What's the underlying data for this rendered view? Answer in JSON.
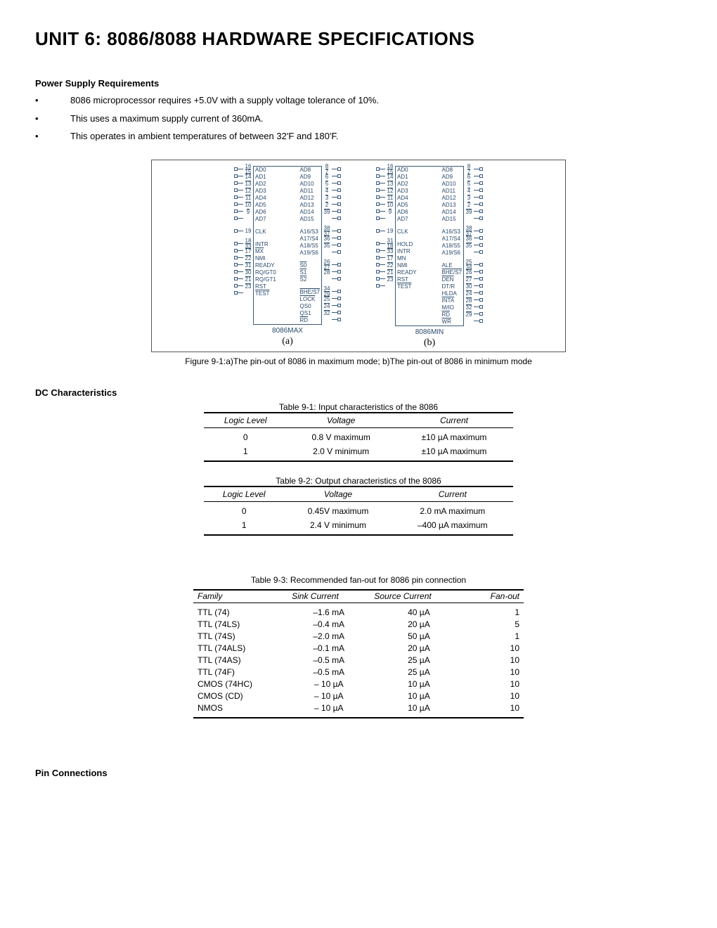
{
  "title": "UNIT 6: 8086/8088 HARDWARE SPECIFICATIONS",
  "psr": {
    "heading": "Power Supply Requirements",
    "bullets": [
      "8086 microprocessor requires +5.0V with a supply voltage tolerance of 10%.",
      "This uses a maximum supply current of 360mA.",
      "This operates in ambient temperatures of between 32'F and 180'F."
    ]
  },
  "figure": {
    "caption": "Figure 9-1:a)The pin-out of 8086 in maximum mode; b)The pin-out of 8086 in minimum mode",
    "name_a": "8086MAX",
    "name_b": "8086MIN",
    "label_a": "(a)",
    "label_b": "(b)",
    "chip_a": {
      "left": [
        {
          "pin": "16",
          "bar": "15",
          "label": "AD0"
        },
        {
          "pin": "",
          "bar": "14",
          "label": "AD1"
        },
        {
          "pin": "",
          "bar": "13",
          "label": "AD2"
        },
        {
          "pin": "",
          "bar": "12",
          "label": "AD3"
        },
        {
          "pin": "",
          "bar": "11",
          "label": "AD4"
        },
        {
          "pin": "",
          "bar": "10",
          "label": "AD5"
        },
        {
          "pin": "",
          "bar": "9",
          "label": "AD6"
        },
        {
          "pin": "",
          "bar": "",
          "label": "AD7"
        },
        {
          "gap": true
        },
        {
          "pin": "19",
          "bar": "",
          "label": "CLK",
          "wedge": true
        },
        {
          "gap": true
        },
        {
          "pin": "18",
          "bar": "33",
          "label": "INTR"
        },
        {
          "pin": "",
          "bar": "17",
          "label": "MX",
          "over": true
        },
        {
          "pin": "",
          "bar": "22",
          "label": "NMI"
        },
        {
          "pin": "",
          "bar": "31",
          "label": "READY"
        },
        {
          "pin": "",
          "bar": "30",
          "label": "RQ/GT0"
        },
        {
          "pin": "",
          "bar": "21",
          "label": "RQ/GT1"
        },
        {
          "pin": "",
          "bar": "23",
          "label": "RST"
        },
        {
          "pin": "",
          "bar": "",
          "label": "TEST",
          "over": true
        }
      ],
      "right": [
        {
          "pin": "8",
          "bar": "7",
          "label": "AD8"
        },
        {
          "pin": "",
          "bar": "6",
          "label": "AD9"
        },
        {
          "pin": "",
          "bar": "5",
          "label": "AD10"
        },
        {
          "pin": "",
          "bar": "4",
          "label": "AD11"
        },
        {
          "pin": "",
          "bar": "3",
          "label": "AD12"
        },
        {
          "pin": "",
          "bar": "2",
          "label": "AD13"
        },
        {
          "pin": "",
          "bar": "39",
          "label": "AD14"
        },
        {
          "pin": "",
          "bar": "",
          "label": "AD15"
        },
        {
          "gap": true
        },
        {
          "pin": "38",
          "bar": "37",
          "label": "A16/S3"
        },
        {
          "pin": "",
          "bar": "36",
          "label": "A17/S4"
        },
        {
          "pin": "",
          "bar": "35",
          "label": "A18/S5"
        },
        {
          "pin": "",
          "bar": "",
          "label": "A19/S6"
        },
        {
          "gap": true
        },
        {
          "pin": "26",
          "bar": "27",
          "label": "S0",
          "over": true
        },
        {
          "pin": "",
          "bar": "28",
          "label": "S1",
          "over": true
        },
        {
          "pin": "",
          "bar": "",
          "label": "S2",
          "over": true
        },
        {
          "gap": true
        },
        {
          "pin": "34",
          "bar": "29",
          "label": "BHE/S7",
          "over": true
        },
        {
          "pin": "",
          "bar": "25",
          "label": "LOCK",
          "over": true
        },
        {
          "pin": "",
          "bar": "24",
          "label": "QS0"
        },
        {
          "pin": "",
          "bar": "32",
          "label": "QS1"
        },
        {
          "pin": "",
          "bar": "",
          "label": "RD",
          "over": true
        }
      ]
    },
    "chip_b": {
      "left": [
        {
          "pin": "16",
          "bar": "15",
          "label": "AD0"
        },
        {
          "pin": "",
          "bar": "14",
          "label": "AD1"
        },
        {
          "pin": "",
          "bar": "13",
          "label": "AD2"
        },
        {
          "pin": "",
          "bar": "12",
          "label": "AD3"
        },
        {
          "pin": "",
          "bar": "11",
          "label": "AD4"
        },
        {
          "pin": "",
          "bar": "10",
          "label": "AD5"
        },
        {
          "pin": "",
          "bar": "9",
          "label": "AD6"
        },
        {
          "pin": "",
          "bar": "",
          "label": "AD7"
        },
        {
          "gap": true
        },
        {
          "pin": "19",
          "bar": "",
          "label": "CLK",
          "wedge": true
        },
        {
          "gap": true
        },
        {
          "pin": "31",
          "bar": "18",
          "label": "HOLD"
        },
        {
          "pin": "",
          "bar": "33",
          "label": "INTR"
        },
        {
          "pin": "",
          "bar": "17",
          "label": "MN"
        },
        {
          "pin": "",
          "bar": "22",
          "label": "NMI"
        },
        {
          "pin": "",
          "bar": "21",
          "label": "READY"
        },
        {
          "pin": "",
          "bar": "23",
          "label": "RST"
        },
        {
          "pin": "",
          "bar": "",
          "label": "TEST",
          "over": true
        }
      ],
      "right": [
        {
          "pin": "8",
          "bar": "7",
          "label": "AD8"
        },
        {
          "pin": "",
          "bar": "6",
          "label": "AD9"
        },
        {
          "pin": "",
          "bar": "5",
          "label": "AD10"
        },
        {
          "pin": "",
          "bar": "4",
          "label": "AD11"
        },
        {
          "pin": "",
          "bar": "3",
          "label": "AD12"
        },
        {
          "pin": "",
          "bar": "2",
          "label": "AD13"
        },
        {
          "pin": "",
          "bar": "39",
          "label": "AD14"
        },
        {
          "pin": "",
          "bar": "",
          "label": "AD15"
        },
        {
          "gap": true
        },
        {
          "pin": "38",
          "bar": "37",
          "label": "A16/S3"
        },
        {
          "pin": "",
          "bar": "36",
          "label": "A17/S4"
        },
        {
          "pin": "",
          "bar": "35",
          "label": "A18/S5"
        },
        {
          "pin": "",
          "bar": "",
          "label": "A19/S6"
        },
        {
          "gap": true
        },
        {
          "pin": "25",
          "bar": "34",
          "label": "ALE"
        },
        {
          "pin": "",
          "bar": "26",
          "label": "BHE/S7",
          "over": true
        },
        {
          "pin": "",
          "bar": "27",
          "label": "DEN",
          "over": true
        },
        {
          "pin": "",
          "bar": "30",
          "label": "DT/R"
        },
        {
          "pin": "",
          "bar": "24",
          "label": "HLDA"
        },
        {
          "pin": "",
          "bar": "28",
          "label": "INTA",
          "over": true
        },
        {
          "pin": "",
          "bar": "32",
          "label": "M/IO"
        },
        {
          "pin": "",
          "bar": "29",
          "label": "RD",
          "over": true
        },
        {
          "pin": "",
          "bar": "",
          "label": "WR",
          "over": true
        }
      ]
    }
  },
  "dc": {
    "heading": "DC Characteristics"
  },
  "t91": {
    "title": "Table 9-1: Input characteristics of the 8086",
    "headers": [
      "Logic Level",
      "Voltage",
      "Current"
    ],
    "rows": [
      [
        "0",
        "0.8 V maximum",
        "±10 µA maximum"
      ],
      [
        "1",
        "2.0 V minimum",
        "±10 µA maximum"
      ]
    ]
  },
  "t92": {
    "title": "Table 9-2: Output characteristics of the 8086",
    "headers": [
      "Logic Level",
      "Voltage",
      "Current"
    ],
    "rows": [
      [
        "0",
        "0.45V maximum",
        "2.0 mA maximum"
      ],
      [
        "1",
        "2.4 V minimum",
        "–400 µA maximum"
      ]
    ]
  },
  "t93": {
    "title": "Table 9-3: Recommended fan-out for 8086 pin connection",
    "headers": [
      "Family",
      "Sink Current",
      "Source Current",
      "Fan-out"
    ],
    "rows": [
      [
        "TTL (74)",
        "–1.6 mA",
        "40 µA",
        "1"
      ],
      [
        "TTL (74LS)",
        "–0.4 mA",
        "20 µA",
        "5"
      ],
      [
        "TTL (74S)",
        "–2.0 mA",
        "50 µA",
        "1"
      ],
      [
        "TTL (74ALS)",
        "–0.1 mA",
        "20 µA",
        "10"
      ],
      [
        "TTL (74AS)",
        "–0.5 mA",
        "25 µA",
        "10"
      ],
      [
        "TTL (74F)",
        "–0.5 mA",
        "25 µA",
        "10"
      ],
      [
        "CMOS (74HC)",
        "– 10 µA",
        "10 µA",
        "10"
      ],
      [
        "CMOS (CD)",
        "– 10 µA",
        "10 µA",
        "10"
      ],
      [
        "NMOS",
        "– 10 µA",
        "10 µA",
        "10"
      ]
    ]
  },
  "pinconn": {
    "heading": "Pin Connections"
  }
}
